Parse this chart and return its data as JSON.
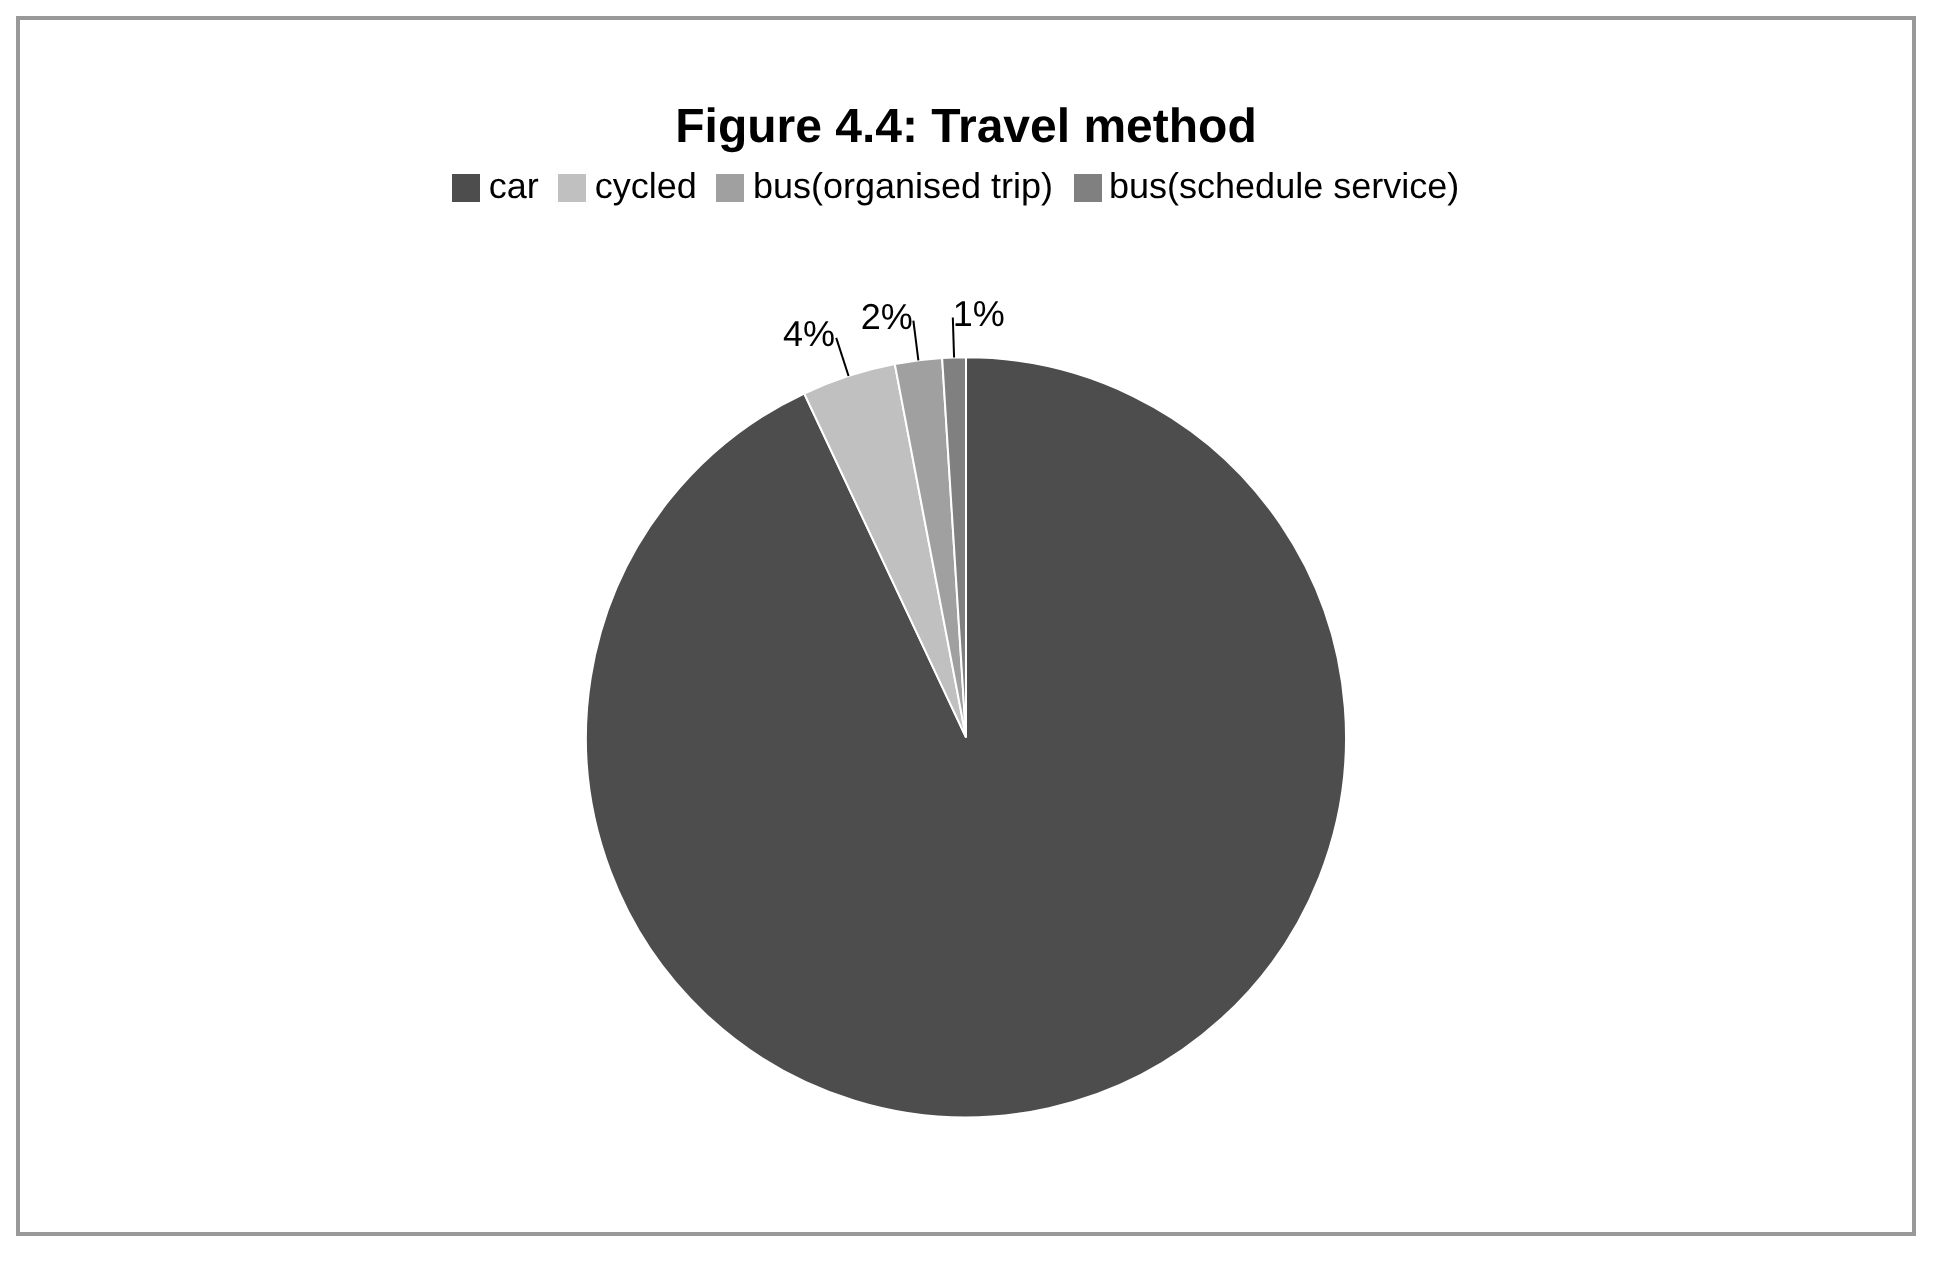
{
  "chart_data": {
    "type": "pie",
    "title": "Figure 4.4: Travel method",
    "categories": [
      "car",
      "cycled",
      "bus(organised trip)",
      "bus(schedule service)"
    ],
    "values": [
      93,
      4,
      2,
      1
    ],
    "value_labels": [
      null,
      "4%",
      "2%",
      "1%"
    ],
    "colors": [
      "#4d4d4d",
      "#c0c0c0",
      "#a0a0a0",
      "#808080"
    ],
    "legend": "top"
  }
}
